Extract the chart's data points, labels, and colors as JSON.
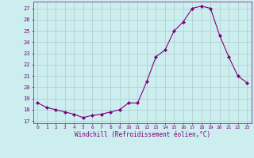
{
  "hours": [
    0,
    1,
    2,
    3,
    4,
    5,
    6,
    7,
    8,
    9,
    10,
    11,
    12,
    13,
    14,
    15,
    16,
    17,
    18,
    19,
    20,
    21,
    22,
    23
  ],
  "values": [
    18.6,
    18.2,
    18.0,
    17.8,
    17.6,
    17.3,
    17.5,
    17.6,
    17.8,
    18.0,
    18.6,
    18.6,
    20.5,
    22.7,
    23.3,
    25.0,
    25.8,
    27.0,
    27.2,
    27.0,
    24.6,
    22.7,
    21.0,
    20.4
  ],
  "line_color": "#800080",
  "marker": "D",
  "marker_size": 2.0,
  "bg_color": "#cceeee",
  "grid_color": "#aacccc",
  "xlabel": "Windchill (Refroidissement éolien,°C)",
  "ylabel_ticks": [
    17,
    18,
    19,
    20,
    21,
    22,
    23,
    24,
    25,
    26,
    27
  ],
  "ylim": [
    16.8,
    27.6
  ],
  "xlim": [
    -0.5,
    23.5
  ],
  "tick_color": "#800080",
  "label_color": "#800080",
  "font_family": "monospace"
}
